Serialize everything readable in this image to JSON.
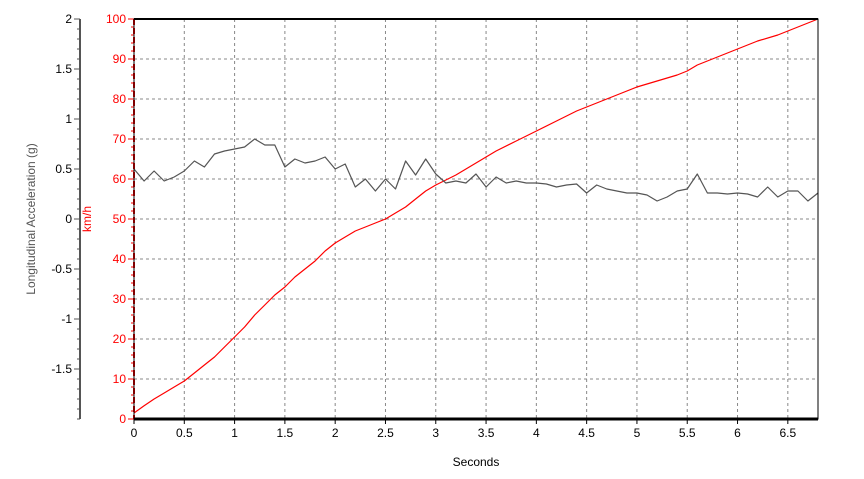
{
  "chart_data": {
    "type": "line",
    "xlabel": "Seconds",
    "xlim": [
      0,
      6.8
    ],
    "x_ticks": [
      "0",
      "0.5",
      "1",
      "1.5",
      "2",
      "2.5",
      "3",
      "3.5",
      "4",
      "4.5",
      "5",
      "5.5",
      "6",
      "6.5"
    ],
    "grid": true,
    "axes": [
      {
        "id": "accel",
        "label": "Longitudinal Acceleration (g)",
        "lim": [
          -2,
          2
        ],
        "ticks": [
          "2",
          "1.5",
          "1",
          "0.5",
          "0",
          "-0.5",
          "-1",
          "-1.5"
        ],
        "color": "#555555"
      },
      {
        "id": "speed",
        "label": "km/h",
        "lim": [
          0,
          100
        ],
        "ticks": [
          "100",
          "90",
          "80",
          "70",
          "60",
          "50",
          "40",
          "30",
          "20",
          "10",
          "0"
        ],
        "color": "#ff0000"
      }
    ],
    "series": [
      {
        "axis": "speed",
        "color": "#ff0000",
        "x": [
          0,
          0.1,
          0.2,
          0.3,
          0.4,
          0.5,
          0.6,
          0.7,
          0.8,
          0.9,
          1.0,
          1.1,
          1.2,
          1.3,
          1.4,
          1.5,
          1.6,
          1.7,
          1.8,
          1.9,
          2.0,
          2.1,
          2.2,
          2.3,
          2.4,
          2.5,
          2.6,
          2.7,
          2.8,
          2.9,
          3.0,
          3.2,
          3.4,
          3.6,
          3.8,
          4.0,
          4.2,
          4.4,
          4.6,
          4.8,
          5.0,
          5.2,
          5.4,
          5.5,
          5.6,
          5.8,
          6.0,
          6.2,
          6.4,
          6.6,
          6.8
        ],
        "values": [
          1.5,
          3.3,
          5,
          6.5,
          8,
          9.5,
          11.5,
          13.5,
          15.5,
          18,
          20.5,
          23,
          26,
          28.5,
          31,
          33,
          35.5,
          37.5,
          39.5,
          42,
          44,
          45.5,
          47,
          48,
          49,
          50,
          51.5,
          53,
          55,
          57,
          58.5,
          61,
          64,
          67,
          69.5,
          72,
          74.5,
          77,
          79,
          81,
          83,
          84.5,
          86,
          87,
          88.5,
          90.5,
          92.5,
          94.5,
          96,
          98,
          100
        ]
      },
      {
        "axis": "accel",
        "color": "#555555",
        "x": [
          0,
          0.1,
          0.2,
          0.3,
          0.4,
          0.5,
          0.6,
          0.7,
          0.8,
          0.9,
          1.0,
          1.1,
          1.2,
          1.3,
          1.4,
          1.5,
          1.6,
          1.7,
          1.8,
          1.9,
          2.0,
          2.1,
          2.2,
          2.3,
          2.4,
          2.5,
          2.6,
          2.7,
          2.8,
          2.9,
          3.0,
          3.1,
          3.2,
          3.3,
          3.4,
          3.5,
          3.6,
          3.7,
          3.8,
          3.9,
          4.0,
          4.1,
          4.2,
          4.3,
          4.4,
          4.5,
          4.6,
          4.7,
          4.8,
          4.9,
          5.0,
          5.1,
          5.2,
          5.3,
          5.4,
          5.5,
          5.6,
          5.7,
          5.8,
          5.9,
          6.0,
          6.1,
          6.2,
          6.3,
          6.4,
          6.5,
          6.6,
          6.7,
          6.8
        ],
        "values": [
          0.5,
          0.38,
          0.48,
          0.38,
          0.42,
          0.48,
          0.58,
          0.52,
          0.65,
          0.68,
          0.7,
          0.72,
          0.8,
          0.74,
          0.74,
          0.52,
          0.6,
          0.56,
          0.58,
          0.62,
          0.5,
          0.55,
          0.32,
          0.4,
          0.28,
          0.4,
          0.3,
          0.58,
          0.44,
          0.6,
          0.45,
          0.36,
          0.38,
          0.36,
          0.45,
          0.32,
          0.42,
          0.36,
          0.38,
          0.36,
          0.36,
          0.35,
          0.32,
          0.34,
          0.35,
          0.26,
          0.34,
          0.3,
          0.28,
          0.26,
          0.26,
          0.24,
          0.18,
          0.22,
          0.28,
          0.3,
          0.45,
          0.26,
          0.26,
          0.25,
          0.26,
          0.25,
          0.22,
          0.32,
          0.22,
          0.28,
          0.28,
          0.18,
          0.26
        ]
      }
    ]
  }
}
